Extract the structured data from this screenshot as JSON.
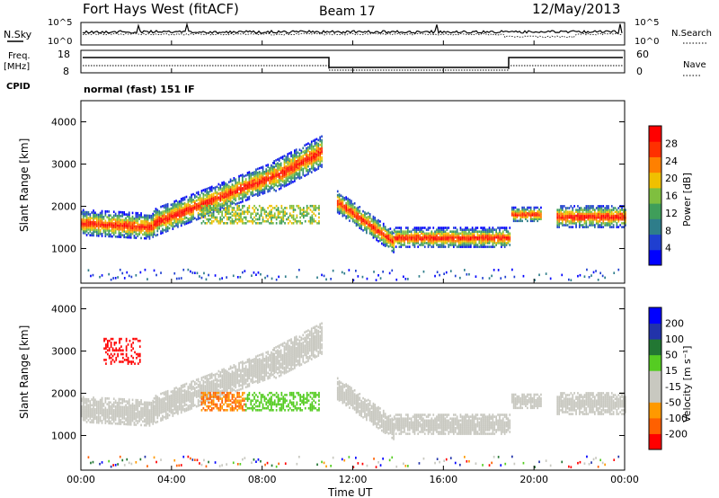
{
  "header": {
    "title": "Fort Hays West (fitACF)",
    "beam": "Beam 17",
    "date": "12/May/2013"
  },
  "nsky_panel": {
    "left_label": "N.Sky",
    "left_ticks": [
      "10^5",
      "10^0"
    ],
    "right_label": "N.Search",
    "right_ticks": [
      "10^5",
      "10^0"
    ]
  },
  "freq_panel": {
    "left_label_line1": "Freq.",
    "left_label_line2": "[MHz]",
    "left_ticks": [
      "18",
      "8"
    ],
    "right_label": "Nave",
    "right_ticks": [
      "60",
      "0"
    ],
    "cpid_label": "CPID",
    "mode_text": "normal (fast) 151 IF"
  },
  "colors": {
    "power": [
      "#0000ff",
      "#1f3fd0",
      "#2e7d8a",
      "#3f9e5a",
      "#7fbf3f",
      "#f0c000",
      "#ff8000",
      "#ff3000",
      "#ff0000"
    ],
    "velocity": [
      "#ff0000",
      "#ff6000",
      "#ff9900",
      "#c8c8c0",
      "#c8c8c0",
      "#55cc22",
      "#227733",
      "#2233aa",
      "#0000ff"
    ],
    "ground_scatter": "#c8c8c0"
  },
  "chart_data": [
    {
      "type": "heatmap",
      "name": "power",
      "ylabel": "Slant Range [km]",
      "y_ticks": [
        "1000",
        "2000",
        "3000",
        "4000"
      ],
      "ylim": [
        180,
        4500
      ],
      "colorbar_label": "Power [dB]",
      "colorbar_ticks": [
        "4",
        "8",
        "12",
        "16",
        "20",
        "24",
        "28"
      ],
      "clim": [
        0,
        32
      ]
    },
    {
      "type": "heatmap",
      "name": "velocity",
      "ylabel": "Slant Range [km]",
      "y_ticks": [
        "1000",
        "2000",
        "3000",
        "4000"
      ],
      "ylim": [
        180,
        4500
      ],
      "colorbar_label": "Velocity [m s⁻¹]",
      "colorbar_ticks": [
        "200",
        "100",
        "50",
        "15",
        "-15",
        "-50",
        "-100",
        "-200"
      ],
      "clim": [
        -250,
        250
      ]
    }
  ],
  "time_axis": {
    "ticks": [
      "00:00",
      "04:00",
      "08:00",
      "12:00",
      "16:00",
      "20:00",
      "00:00"
    ],
    "xlabel": "Time UT"
  }
}
